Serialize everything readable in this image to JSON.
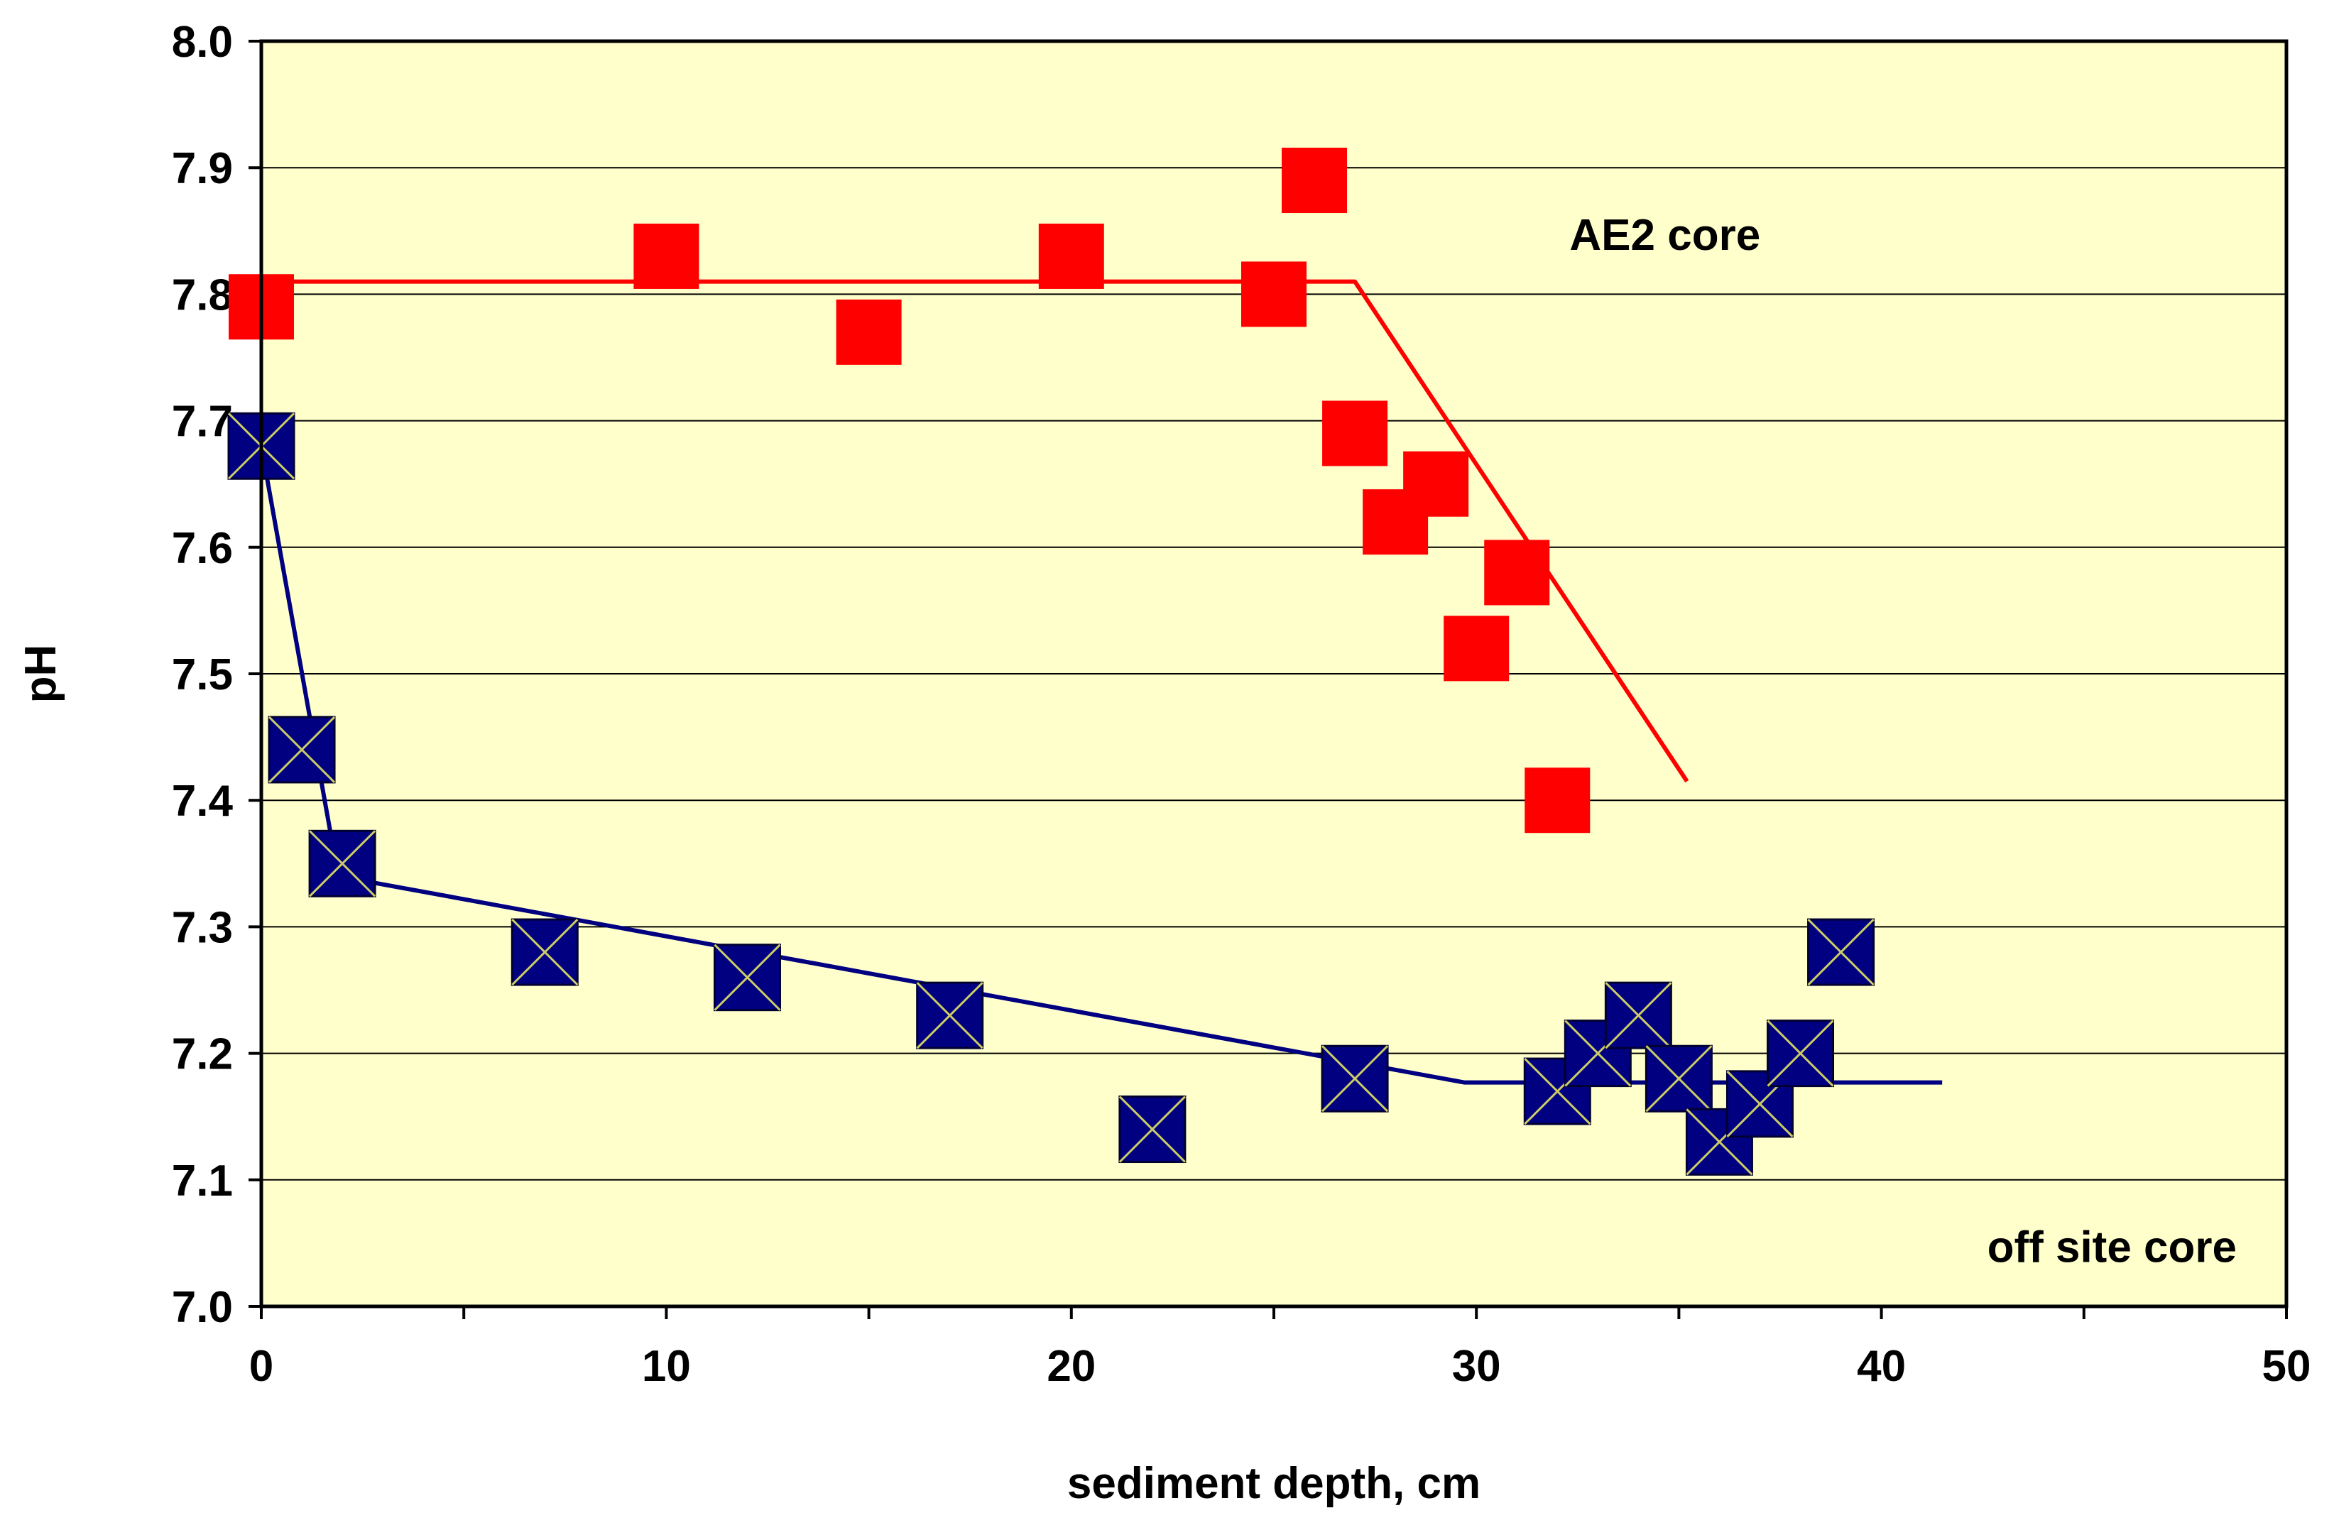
{
  "chart_data": {
    "type": "scatter",
    "title": "",
    "xlabel": "sediment depth, cm",
    "ylabel": "pH",
    "xlim": [
      0,
      50
    ],
    "ylim": [
      7.0,
      8.0
    ],
    "x_ticks": [
      0,
      10,
      20,
      30,
      40,
      50
    ],
    "x_minor_ticks": [
      5,
      15,
      25,
      35,
      45
    ],
    "y_ticks": [
      7.0,
      7.1,
      7.2,
      7.3,
      7.4,
      7.5,
      7.6,
      7.7,
      7.8,
      7.9,
      8.0
    ],
    "x_tick_labels": [
      "0",
      "10",
      "20",
      "30",
      "40",
      "50"
    ],
    "y_tick_labels": [
      "7.0",
      "7.1",
      "7.2",
      "7.3",
      "7.4",
      "7.5",
      "7.6",
      "7.7",
      "7.8",
      "7.9",
      "8.0"
    ],
    "grid": "horizontal",
    "plot_background": "#FFFFCC",
    "series": [
      {
        "name": "AE2 core",
        "marker": "square",
        "color": "#FF0000",
        "x": [
          0,
          10,
          15,
          20,
          25,
          26,
          27,
          28,
          29,
          30,
          31,
          32
        ],
        "y": [
          7.79,
          7.83,
          7.77,
          7.83,
          7.8,
          7.89,
          7.69,
          7.62,
          7.65,
          7.52,
          7.58,
          7.4
        ],
        "fit_line": {
          "x": [
            0,
            27,
            35.2
          ],
          "y": [
            7.81,
            7.81,
            7.415
          ]
        }
      },
      {
        "name": "off site core",
        "marker": "square-x",
        "color": "#000080",
        "cross_color": "#CCCC66",
        "x": [
          0,
          1,
          2,
          7,
          12,
          17,
          22,
          27,
          32,
          33,
          34,
          35,
          36,
          37,
          38,
          39
        ],
        "y": [
          7.68,
          7.44,
          7.35,
          7.28,
          7.26,
          7.23,
          7.14,
          7.18,
          7.17,
          7.2,
          7.23,
          7.18,
          7.13,
          7.16,
          7.2,
          7.28
        ],
        "fit_line": {
          "x": [
            0,
            1.9,
            29.7,
            41.5
          ],
          "y": [
            7.68,
            7.34,
            7.177,
            7.177
          ]
        }
      }
    ],
    "annotations": [
      {
        "text": "AE2 core",
        "series": "AE2 core"
      },
      {
        "text": "off site core",
        "series": "off site core"
      }
    ]
  }
}
